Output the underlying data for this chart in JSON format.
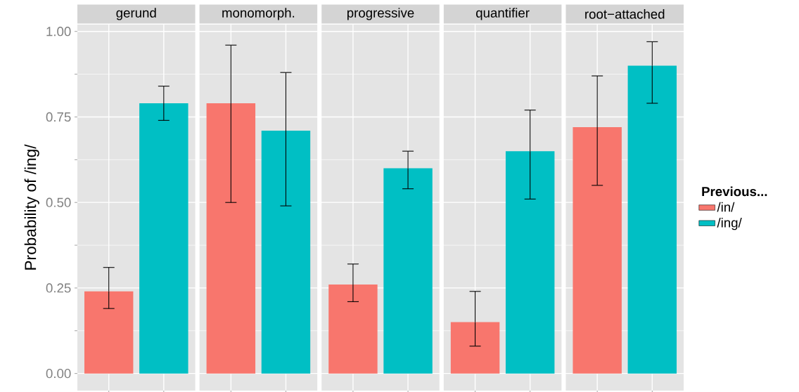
{
  "chart_data": {
    "type": "bar",
    "ylabel": "Probability of /ing/",
    "legend_title": "Previous...",
    "legend": "right",
    "categories": [
      "gerund",
      "monomorph.",
      "progressive",
      "quantifier",
      "root−attached"
    ],
    "ylim": [
      -0.05,
      1.02
    ],
    "yticks": [
      {
        "value": 0,
        "label": "0.00"
      },
      {
        "value": 0.25,
        "label": "0.25"
      },
      {
        "value": 0.5,
        "label": "0.50"
      },
      {
        "value": 0.75,
        "label": "0.75"
      },
      {
        "value": 1,
        "label": "1.00"
      }
    ],
    "grid": true,
    "series": [
      {
        "name": "/in/",
        "color": "#f8766d",
        "values": [
          0.24,
          0.79,
          0.26,
          0.15,
          0.72
        ],
        "errors": [
          [
            0.19,
            0.31
          ],
          [
            0.5,
            0.96
          ],
          [
            0.21,
            0.32
          ],
          [
            0.08,
            0.24
          ],
          [
            0.55,
            0.87
          ]
        ]
      },
      {
        "name": "/ing/",
        "color": "#00bfc4",
        "values": [
          0.79,
          0.71,
          0.6,
          0.65,
          0.9
        ],
        "errors": [
          [
            0.74,
            0.84
          ],
          [
            0.49,
            0.88
          ],
          [
            0.54,
            0.65
          ],
          [
            0.51,
            0.77
          ],
          [
            0.79,
            0.97
          ]
        ]
      }
    ]
  }
}
